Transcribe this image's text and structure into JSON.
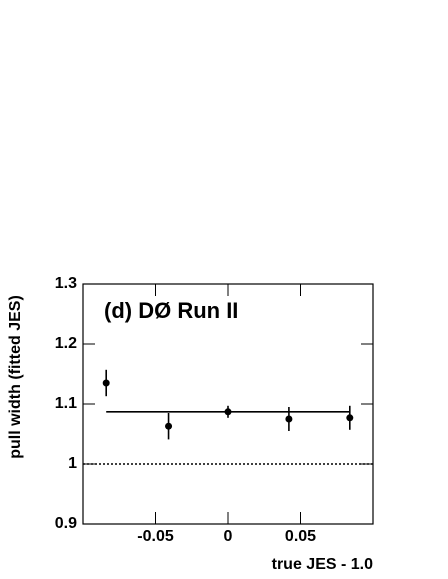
{
  "chart_data": {
    "type": "errorbar",
    "annotation": "(d)  DØ Run II",
    "x_label": "true JES - 1.0",
    "y_label": "pull width (fitted JES)",
    "x": [
      -0.084,
      -0.041,
      0,
      0.042,
      0.084
    ],
    "values": [
      1.135,
      1.063,
      1.087,
      1.075,
      1.077
    ],
    "errors": [
      0.022,
      0.022,
      0.01,
      0.02,
      0.02
    ],
    "color": "#000000",
    "fit": {
      "value": 1.087,
      "xrange": [
        -0.084,
        0.084
      ]
    },
    "reference_line": 1,
    "xlim": [
      -0.1,
      0.1
    ],
    "xticks": [
      -0.05,
      0,
      0.05
    ],
    "ylim": [
      0.9,
      1.3
    ],
    "yticks": [
      0.9,
      1,
      1.1,
      1.2,
      1.3
    ]
  }
}
